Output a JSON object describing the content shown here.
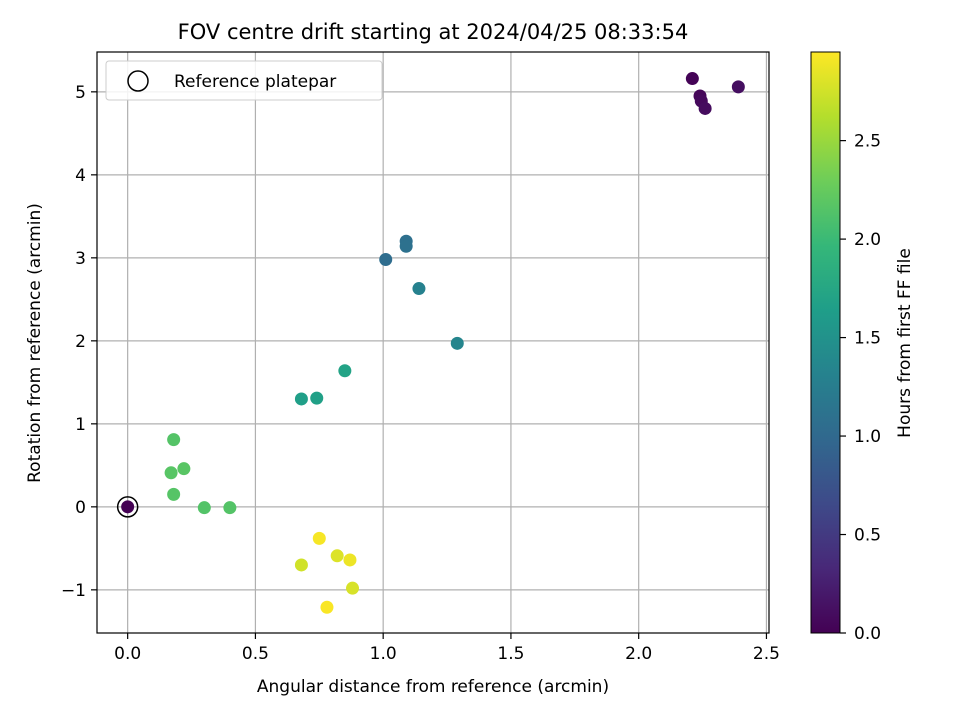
{
  "chart_data": {
    "type": "scatter",
    "title": "FOV centre drift starting at 2024/04/25 08:33:54",
    "xlabel": "Angular distance from reference (arcmin)",
    "ylabel": "Rotation from reference (arcmin)",
    "xlim": [
      -0.12,
      2.51
    ],
    "ylim": [
      -1.52,
      5.48
    ],
    "xticks": [
      0.0,
      0.5,
      1.0,
      1.5,
      2.0,
      2.5
    ],
    "xtick_labels": [
      "0.0",
      "0.5",
      "1.0",
      "1.5",
      "2.0",
      "2.5"
    ],
    "yticks": [
      -1,
      0,
      1,
      2,
      3,
      4,
      5
    ],
    "ytick_labels": [
      "−1",
      "0",
      "1",
      "2",
      "3",
      "4",
      "5"
    ],
    "grid": true,
    "legend": {
      "placement": "top-left",
      "entries": [
        "Reference platepar"
      ]
    },
    "reference_point": {
      "x": 0.0,
      "y": 0.0
    },
    "colorbar": {
      "label": "Hours from first FF file",
      "colormap": "viridis",
      "range": [
        0.0,
        2.95
      ],
      "ticks": [
        0.0,
        0.5,
        1.0,
        1.5,
        2.0,
        2.5
      ],
      "tick_labels": [
        "0.0",
        "0.5",
        "1.0",
        "1.5",
        "2.0",
        "2.5"
      ]
    },
    "points": [
      {
        "x": 0.0,
        "y": 0.0,
        "h": 0.0
      },
      {
        "x": 2.21,
        "y": 5.16,
        "h": 0.02
      },
      {
        "x": 2.24,
        "y": 4.95,
        "h": 0.05
      },
      {
        "x": 2.245,
        "y": 4.89,
        "h": 0.07
      },
      {
        "x": 2.26,
        "y": 4.8,
        "h": 0.09
      },
      {
        "x": 2.39,
        "y": 5.06,
        "h": 0.11
      },
      {
        "x": 1.09,
        "y": 3.2,
        "h": 1.08
      },
      {
        "x": 1.09,
        "y": 3.14,
        "h": 1.1
      },
      {
        "x": 1.01,
        "y": 2.98,
        "h": 1.05
      },
      {
        "x": 1.14,
        "y": 2.63,
        "h": 1.3
      },
      {
        "x": 1.29,
        "y": 1.97,
        "h": 1.35
      },
      {
        "x": 0.85,
        "y": 1.64,
        "h": 1.7
      },
      {
        "x": 0.68,
        "y": 1.3,
        "h": 1.65
      },
      {
        "x": 0.74,
        "y": 1.31,
        "h": 1.67
      },
      {
        "x": 0.18,
        "y": 0.81,
        "h": 2.15
      },
      {
        "x": 0.22,
        "y": 0.46,
        "h": 2.18
      },
      {
        "x": 0.17,
        "y": 0.41,
        "h": 2.17
      },
      {
        "x": 0.18,
        "y": 0.15,
        "h": 2.16
      },
      {
        "x": 0.3,
        "y": -0.01,
        "h": 2.14
      },
      {
        "x": 0.4,
        "y": -0.01,
        "h": 2.15
      },
      {
        "x": 0.75,
        "y": -0.38,
        "h": 2.92
      },
      {
        "x": 0.82,
        "y": -0.59,
        "h": 2.8
      },
      {
        "x": 0.87,
        "y": -0.64,
        "h": 2.88
      },
      {
        "x": 0.68,
        "y": -0.7,
        "h": 2.75
      },
      {
        "x": 0.88,
        "y": -0.98,
        "h": 2.78
      },
      {
        "x": 0.78,
        "y": -1.21,
        "h": 2.93
      }
    ]
  }
}
